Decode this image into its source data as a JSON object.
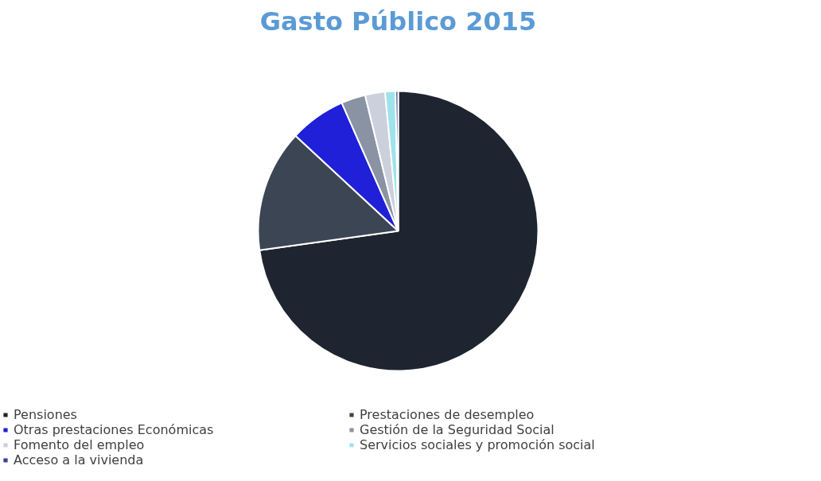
{
  "chart_data": {
    "type": "pie",
    "title": "Gasto Público 2015",
    "categories": [
      "Pensiones",
      "Prestaciones de desempleo",
      "Otras prestaciones Económicas",
      "Gestión de la Seguridad Social",
      "Fomento del empleo",
      "Servicios sociales y promoción social",
      "Acceso a la vivienda"
    ],
    "values": [
      72.8,
      14.1,
      6.5,
      2.8,
      2.3,
      1.2,
      0.3
    ],
    "colors": [
      "#1e2530",
      "#3c4553",
      "#2020d8",
      "#8a93a4",
      "#ccd0dc",
      "#9fe3ea",
      "#3a3f8f"
    ],
    "legend": "bottom"
  }
}
